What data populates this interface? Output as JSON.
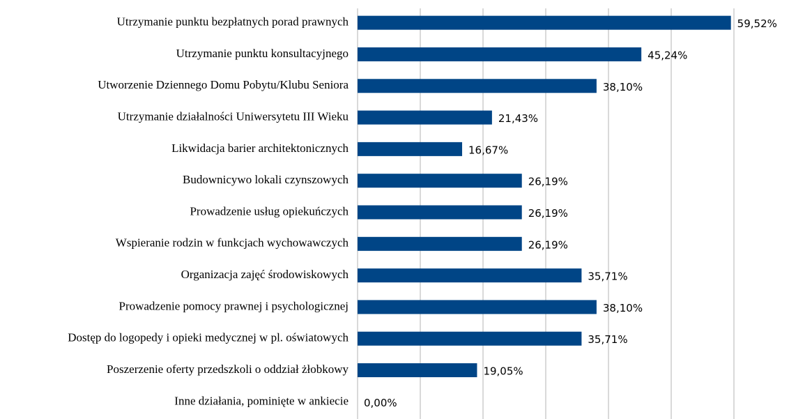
{
  "chart_data": {
    "type": "bar",
    "orientation": "horizontal",
    "categories": [
      "Utrzymanie punktu bezpłatnych porad prawnych",
      "Utrzymanie punktu konsultacyjnego",
      "Utworzenie Dziennego Domu Pobytu/Klubu Seniora",
      "Utrzymanie działalności Uniwersytetu III Wieku",
      "Likwidacja barier architektonicznych",
      "Budownicywo lokali czynszowych",
      "Prowadzenie usług opiekuńczych",
      "Wspieranie rodzin w funkcjach wychowawczych",
      "Organizacja zajęć środowiskowych",
      "Prowadzenie pomocy prawnej i psychologicznej",
      "Dostęp do logopedy i opieki medycznej w pl. oświatowych",
      "Poszerzenie oferty przedszkoli o oddział żłobkowy",
      "Inne działania, pominięte w ankiecie"
    ],
    "values": [
      59.52,
      45.24,
      38.1,
      21.43,
      16.67,
      26.19,
      26.19,
      26.19,
      35.71,
      38.1,
      35.71,
      19.05,
      0
    ],
    "value_labels": [
      "59,52%",
      "45,24%",
      "38,10%",
      "21,43%",
      "16,67%",
      "26,19%",
      "26,19%",
      "26,19%",
      "35,71%",
      "38,10%",
      "35,71%",
      "19,05%",
      "0,00%"
    ],
    "color": "#004586",
    "xlim": [
      0,
      60
    ],
    "xticks": [
      0,
      10,
      20,
      30,
      40,
      50,
      60
    ],
    "grid": true
  }
}
